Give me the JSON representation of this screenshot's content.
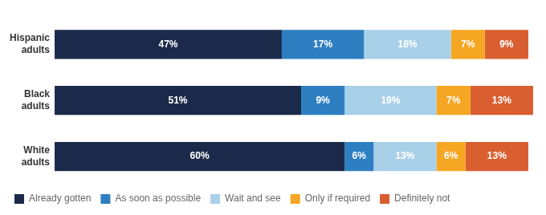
{
  "chart_data": {
    "type": "bar",
    "orientation": "horizontal",
    "stacked": true,
    "categories": [
      "Hispanic\nadults",
      "Black\nadults",
      "White\nadults"
    ],
    "series": [
      {
        "name": "Already gotten",
        "color": "#1b2a4a",
        "values": [
          47,
          51,
          60
        ],
        "value_labels": [
          "47%",
          "51%",
          "60%"
        ]
      },
      {
        "name": "As soon as possible",
        "color": "#2e7fc1",
        "values": [
          17,
          9,
          6
        ],
        "value_labels": [
          "17%",
          "9%",
          "6%"
        ]
      },
      {
        "name": "Wait and see",
        "color": "#a8d0e8",
        "values": [
          18,
          19,
          13
        ],
        "value_labels": [
          "18%",
          "19%",
          "13%"
        ]
      },
      {
        "name": "Only if required",
        "color": "#f5a623",
        "values": [
          7,
          7,
          6
        ],
        "value_labels": [
          "7%",
          "7%",
          "6%"
        ]
      },
      {
        "name": "Definitely not",
        "color": "#d95f30",
        "values": [
          9,
          13,
          13
        ],
        "value_labels": [
          "9%",
          "13%",
          "13%"
        ]
      }
    ],
    "xlim": [
      0,
      100
    ],
    "grid": false,
    "legend": "bottom",
    "data_labels": true,
    "tick_labels": "y"
  }
}
